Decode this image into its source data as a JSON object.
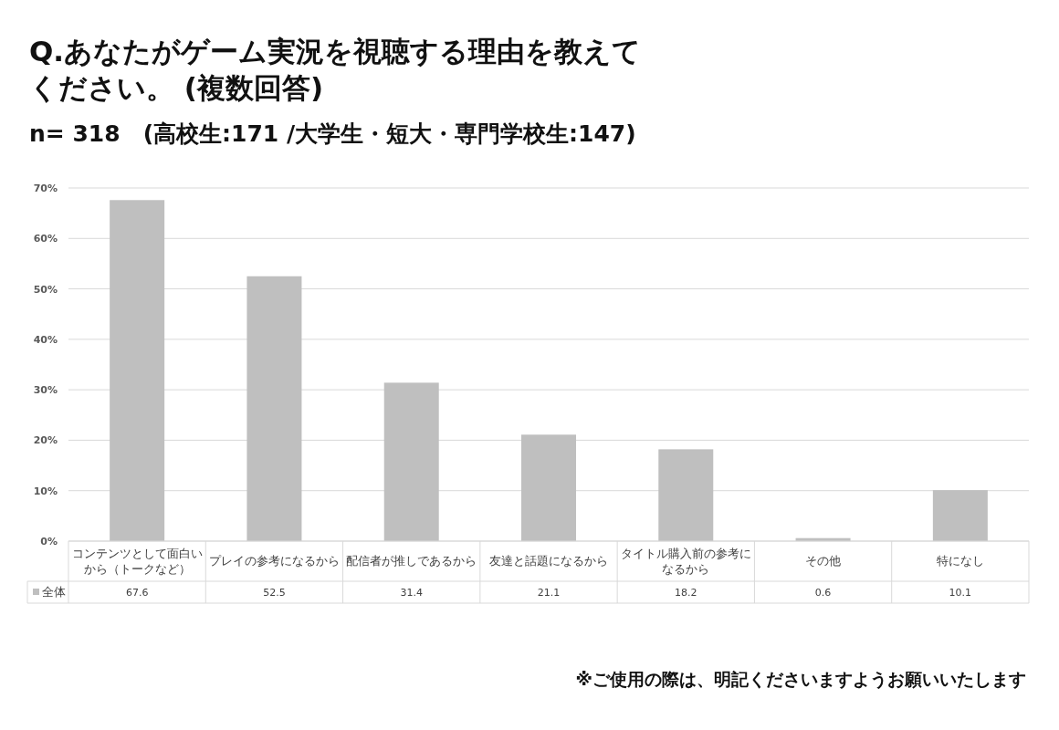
{
  "chart_data": {
    "type": "bar",
    "title": "Q.あなたがゲーム実況を視聴する理由を教えてください。 (複数回答)",
    "subtitle": "n= 318　(高校生:171 /大学生・短大・専門学校生:147)",
    "categories": [
      "コンテンツとして面白いから（トークなど）",
      "プレイの参考になるから",
      "配信者が推しであるから",
      "友達と話題になるから",
      "タイトル購入前の参考になるから",
      "その他",
      "特になし"
    ],
    "series": [
      {
        "name": "全体",
        "color": "#bfbfbf",
        "values": [
          67.6,
          52.5,
          31.4,
          21.1,
          18.2,
          0.6,
          10.1
        ]
      }
    ],
    "ylim": [
      0,
      70
    ],
    "yticks": [
      {
        "value": 0,
        "label": "0%"
      },
      {
        "value": 10,
        "label": "10%"
      },
      {
        "value": 20,
        "label": "20%"
      },
      {
        "value": 30,
        "label": "30%"
      },
      {
        "value": 40,
        "label": "40%"
      },
      {
        "value": 50,
        "label": "50%"
      },
      {
        "value": 60,
        "label": "60%"
      },
      {
        "value": 70,
        "label": "70%"
      }
    ],
    "grid": "y",
    "data_labels": true,
    "legend": "bottom",
    "annotations": [
      "※ご使用の際は、明記くださいますようお願いいたします"
    ]
  }
}
